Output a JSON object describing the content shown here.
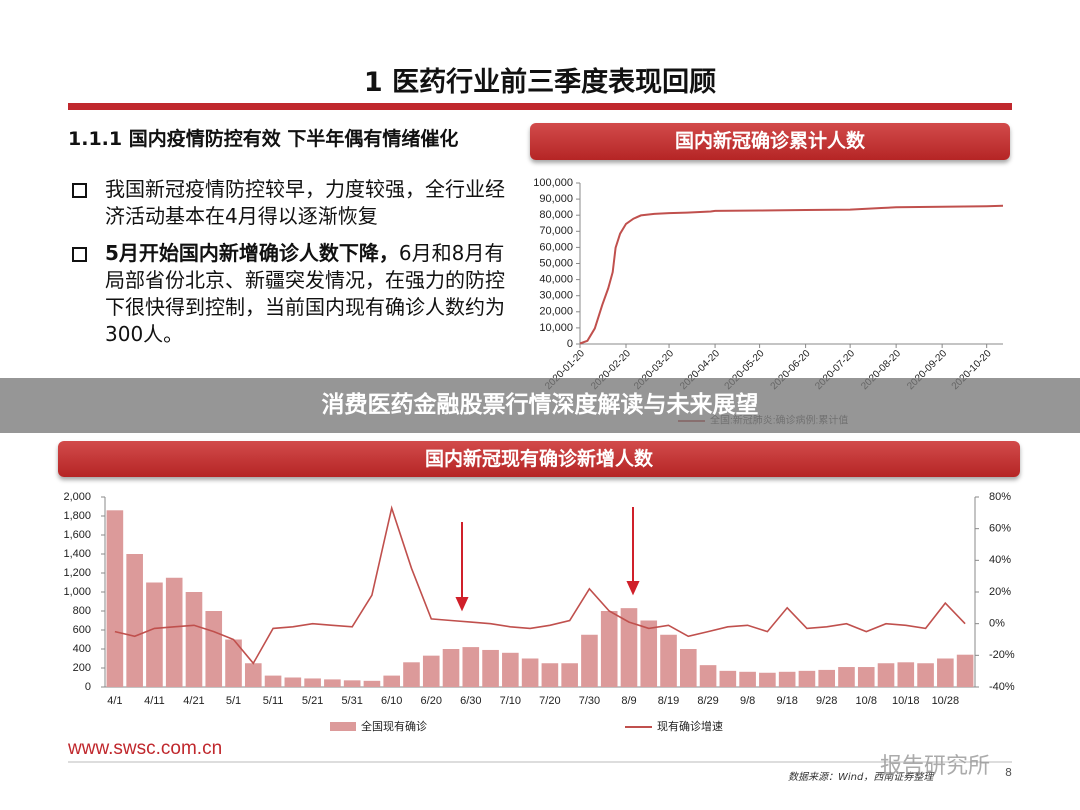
{
  "header": {
    "title": "1 医药行业前三季度表现回顾",
    "subtitle": "1.1.1 国内疫情防控有效 下半年偶有情绪催化"
  },
  "bullets": [
    {
      "text": "我国新冠疫情防控较早，力度较强，全行业经济活动基本在4月得以逐渐恢复"
    },
    {
      "bold": "5月开始国内新增确诊人数下降，",
      "text": "6月和8月有局部省份北京、新疆突发情况，在强力的防控下很快得到控制，当前国内现有确诊人数约为300人。"
    }
  ],
  "chart_data": [
    {
      "type": "line",
      "title": "国内新冠确诊累计人数",
      "series_name": "全国:新冠肺炎:确诊病例:累计值",
      "color": "#c0504d",
      "x": [
        "2020-01-20",
        "2020-01-25",
        "2020-01-30",
        "2020-02-04",
        "2020-02-08",
        "2020-02-11",
        "2020-02-13",
        "2020-02-16",
        "2020-02-20",
        "2020-02-25",
        "2020-03-01",
        "2020-03-10",
        "2020-03-20",
        "2020-04-01",
        "2020-04-17",
        "2020-04-20",
        "2020-05-20",
        "2020-06-20",
        "2020-07-20",
        "2020-08-10",
        "2020-08-20",
        "2020-09-20",
        "2020-10-20",
        "2020-10-31"
      ],
      "values": [
        291,
        1975,
        9692,
        24324,
        34546,
        44653,
        59804,
        68500,
        74600,
        77800,
        79900,
        80800,
        81300,
        81600,
        82300,
        82700,
        82900,
        83200,
        83500,
        84500,
        84900,
        85200,
        85600,
        85900
      ],
      "xlim": [
        "2020-01-20",
        "2020-10-31"
      ],
      "xticks": [
        "2020-01-20",
        "2020-02-20",
        "2020-03-20",
        "2020-04-20",
        "2020-05-20",
        "2020-06-20",
        "2020-07-20",
        "2020-08-20",
        "2020-09-20",
        "2020-10-20"
      ],
      "ylim": [
        0,
        100000
      ],
      "yticks": [
        0,
        {
          "value": 10000,
          "label": "10,000"
        },
        {
          "value": 20000,
          "label": "20,000"
        },
        {
          "value": 30000,
          "label": "30,000"
        },
        {
          "value": 40000,
          "label": "40,000"
        },
        {
          "value": 50000,
          "label": "50,000"
        },
        {
          "value": 60000,
          "label": "60,000"
        },
        {
          "value": 70000,
          "label": "70,000"
        },
        {
          "value": 80000,
          "label": "80,000"
        },
        {
          "value": 90000,
          "label": "90,000"
        },
        {
          "value": 100000,
          "label": "100,000"
        }
      ]
    },
    {
      "type": "bar-line",
      "title": "国内新冠现有确诊新增人数",
      "categories": [
        "4/1",
        null,
        "4/11",
        null,
        "4/21",
        null,
        "5/1",
        null,
        "5/11",
        null,
        "5/21",
        null,
        "5/31",
        null,
        "6/10",
        null,
        "6/20",
        null,
        "6/30",
        null,
        "7/10",
        null,
        "7/20",
        null,
        "7/30",
        null,
        "8/9",
        null,
        "8/19",
        null,
        "8/29",
        null,
        "9/8",
        null,
        "9/18",
        null,
        "9/28",
        null,
        "10/8",
        null,
        "10/18",
        null,
        "10/28",
        null
      ],
      "series": [
        {
          "name": "全国现有确诊",
          "color": "#dc9a9a",
          "values": [
            1860,
            1400,
            1100,
            1150,
            1000,
            800,
            500,
            250,
            120,
            100,
            90,
            80,
            70,
            65,
            120,
            260,
            330,
            400,
            420,
            390,
            360,
            300,
            250,
            250,
            550,
            800,
            830,
            700,
            550,
            400,
            230,
            170,
            160,
            150,
            160,
            170,
            180,
            210,
            210,
            250,
            260,
            250,
            300,
            340
          ]
        },
        {
          "name": "现有确诊增速",
          "color": "#c0504d",
          "axis": "y2",
          "values": [
            -5,
            -8,
            -3,
            -2,
            -1,
            -5,
            -10,
            -25,
            -3,
            -2,
            0,
            -1,
            -2,
            18,
            73,
            35,
            3,
            2,
            1,
            0,
            -2,
            -3,
            -1,
            2,
            22,
            8,
            1,
            -3,
            -1,
            -8,
            -5,
            -2,
            -1,
            -5,
            10,
            -3,
            -2,
            0,
            -5,
            0,
            -1,
            -3,
            13,
            0
          ]
        }
      ],
      "ylim": [
        0,
        2000
      ],
      "yticks": [
        0,
        200,
        400,
        600,
        800,
        {
          "value": 1000,
          "label": "1,000"
        },
        {
          "value": 1200,
          "label": "1,200"
        },
        {
          "value": 1400,
          "label": "1,400"
        },
        {
          "value": 1600,
          "label": "1,600"
        },
        {
          "value": 1800,
          "label": "1,800"
        },
        {
          "value": 2000,
          "label": "2,000"
        }
      ],
      "y2lim": [
        -40,
        80
      ],
      "y2ticks": [
        {
          "value": -40,
          "label": "-40%"
        },
        {
          "value": -20,
          "label": "-20%"
        },
        {
          "value": 0,
          "label": "0%"
        },
        {
          "value": 20,
          "label": "20%"
        },
        {
          "value": 40,
          "label": "40%"
        },
        {
          "value": 60,
          "label": "60%"
        },
        {
          "value": 80,
          "label": "80%"
        }
      ]
    }
  ],
  "banner": "消费医药金融股票行情深度解读与未来展望",
  "footer": {
    "website": "www.swsc.com.cn",
    "source": "数据来源：Wind，西南证券整理",
    "watermark": "报告研究所",
    "page": 8
  }
}
